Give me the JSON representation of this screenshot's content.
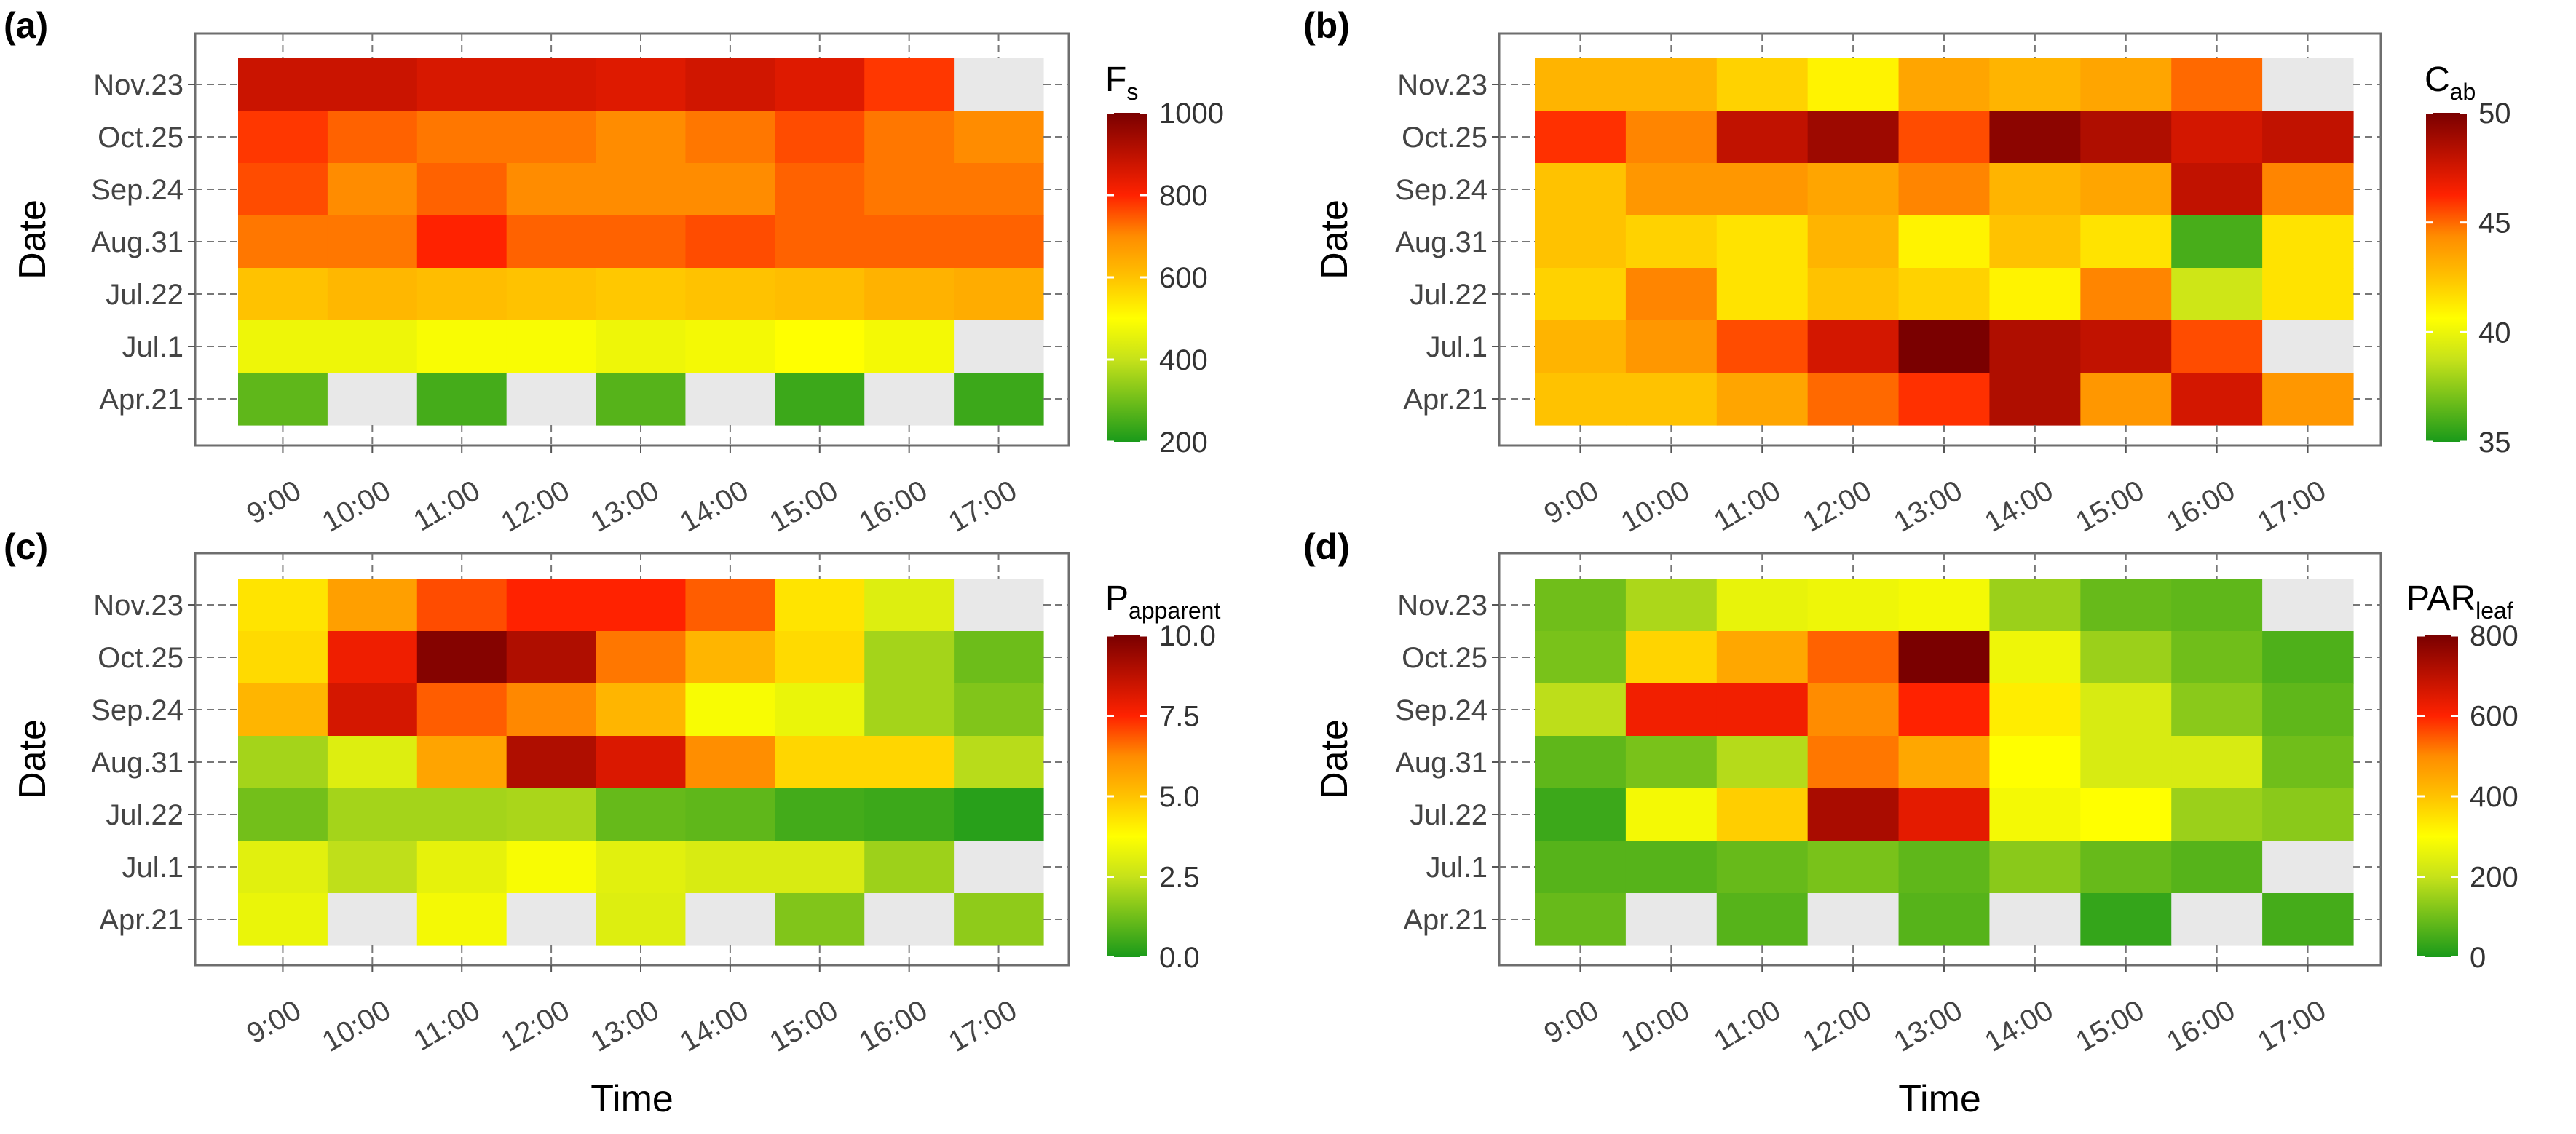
{
  "chart_data": [
    {
      "type": "heatmap",
      "label": "(a)",
      "legend_title": "F",
      "legend_sub": "s",
      "legend_range": [
        200,
        1000
      ],
      "legend_ticks": [
        "200",
        "400",
        "600",
        "800",
        "1000"
      ],
      "xlabel": "",
      "ylabel": "Date",
      "x": [
        "9:00",
        "10:00",
        "11:00",
        "12:00",
        "13:00",
        "14:00",
        "15:00",
        "16:00",
        "17:00"
      ],
      "y": [
        "Nov.23",
        "Oct.25",
        "Sep.24",
        "Aug.31",
        "Jul.22",
        "Jul.1",
        "Apr.21"
      ],
      "values": [
        [
          880,
          880,
          860,
          860,
          850,
          870,
          850,
          780,
          null
        ],
        [
          780,
          740,
          720,
          720,
          700,
          720,
          760,
          720,
          700
        ],
        [
          760,
          700,
          740,
          700,
          700,
          700,
          740,
          720,
          720
        ],
        [
          720,
          720,
          800,
          740,
          740,
          760,
          740,
          740,
          740
        ],
        [
          600,
          620,
          610,
          600,
          590,
          600,
          610,
          630,
          640
        ],
        [
          470,
          470,
          490,
          490,
          470,
          480,
          500,
          480,
          null
        ],
        [
          280,
          null,
          250,
          null,
          270,
          null,
          240,
          null,
          240
        ]
      ]
    },
    {
      "type": "heatmap",
      "label": "(b)",
      "legend_title": "C",
      "legend_sub": "ab",
      "legend_range": [
        35,
        50
      ],
      "legend_ticks": [
        "35",
        "40",
        "45",
        "50"
      ],
      "xlabel": "",
      "ylabel": "Date",
      "x": [
        "9:00",
        "10:00",
        "11:00",
        "12:00",
        "13:00",
        "14:00",
        "15:00",
        "16:00",
        "17:00"
      ],
      "y": [
        "Nov.23",
        "Oct.25",
        "Sep.24",
        "Aug.31",
        "Jul.22",
        "Jul.1",
        "Apr.21"
      ],
      "values": [
        [
          43,
          43,
          42,
          41,
          43.5,
          43,
          43.5,
          45,
          null
        ],
        [
          46,
          44.5,
          48,
          49,
          45.5,
          49.5,
          48.5,
          47.5,
          48
        ],
        [
          42.5,
          44,
          44,
          43.5,
          44.5,
          43,
          43.5,
          48,
          44.5
        ],
        [
          42.5,
          42,
          41.5,
          43,
          41,
          42.5,
          41.5,
          36,
          41.5
        ],
        [
          42,
          44.5,
          41.5,
          42.5,
          42,
          41,
          44.5,
          39,
          41.5
        ],
        [
          43,
          44,
          45.5,
          47.5,
          50,
          48.5,
          48,
          45.5,
          null
        ],
        [
          42.5,
          42.5,
          43.5,
          45,
          46,
          48.5,
          44,
          47.5,
          44
        ]
      ]
    },
    {
      "type": "heatmap",
      "label": "(c)",
      "legend_title": "P",
      "legend_sub": "apparent",
      "legend_range": [
        0,
        10
      ],
      "legend_ticks": [
        "0.0",
        "2.5",
        "5.0",
        "7.5",
        "10.0"
      ],
      "xlabel": "Time",
      "ylabel": "Date",
      "x": [
        "9:00",
        "10:00",
        "11:00",
        "12:00",
        "13:00",
        "14:00",
        "15:00",
        "16:00",
        "17:00"
      ],
      "y": [
        "Nov.23",
        "Oct.25",
        "Sep.24",
        "Aug.31",
        "Jul.22",
        "Jul.1",
        "Apr.21"
      ],
      "values": [
        [
          4.3,
          5.8,
          7.0,
          7.5,
          7.5,
          6.8,
          4.3,
          3.0,
          null
        ],
        [
          4.5,
          7.8,
          9.8,
          9.0,
          6.5,
          5.3,
          4.5,
          2.0,
          1.2
        ],
        [
          5.3,
          8.3,
          6.8,
          6.3,
          5.3,
          3.6,
          3.3,
          2.0,
          1.5
        ],
        [
          2.0,
          3.0,
          5.7,
          9.0,
          8.2,
          6.2,
          4.6,
          4.6,
          2.3
        ],
        [
          1.3,
          2.0,
          2.0,
          2.1,
          1.1,
          1.0,
          0.6,
          0.5,
          0.2
        ],
        [
          3.1,
          2.4,
          3.2,
          3.6,
          3.1,
          2.9,
          2.9,
          1.9,
          null
        ],
        [
          3.3,
          null,
          3.5,
          null,
          3.0,
          null,
          1.5,
          null,
          1.7
        ]
      ]
    },
    {
      "type": "heatmap",
      "label": "(d)",
      "legend_title": "PAR",
      "legend_sub": "leaf",
      "legend_range": [
        0,
        800
      ],
      "legend_ticks": [
        "0",
        "200",
        "400",
        "600",
        "800"
      ],
      "xlabel": "Time",
      "ylabel": "Date",
      "x": [
        "9:00",
        "10:00",
        "11:00",
        "12:00",
        "13:00",
        "14:00",
        "15:00",
        "16:00",
        "17:00"
      ],
      "y": [
        "Nov.23",
        "Oct.25",
        "Sep.24",
        "Aug.31",
        "Jul.22",
        "Jul.1",
        "Apr.21"
      ],
      "values": [
        [
          100,
          170,
          260,
          270,
          280,
          150,
          90,
          80,
          null
        ],
        [
          110,
          370,
          450,
          540,
          800,
          270,
          150,
          100,
          60
        ],
        [
          190,
          620,
          620,
          500,
          600,
          330,
          230,
          130,
          80
        ],
        [
          80,
          110,
          180,
          520,
          450,
          300,
          230,
          230,
          100
        ],
        [
          40,
          280,
          380,
          730,
          640,
          280,
          300,
          150,
          130
        ],
        [
          70,
          70,
          90,
          110,
          80,
          130,
          90,
          70,
          null
        ],
        [
          90,
          null,
          70,
          null,
          70,
          null,
          30,
          null,
          50
        ]
      ]
    }
  ]
}
